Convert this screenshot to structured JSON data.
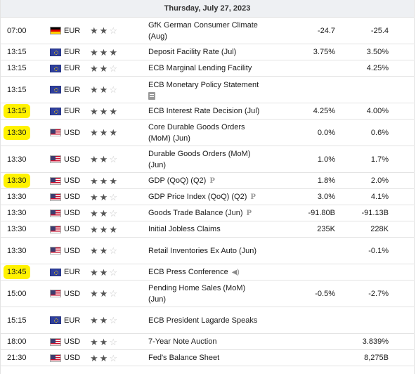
{
  "date_header": "Thursday, July 27, 2023",
  "rows": [
    {
      "time": "07:00",
      "hl": false,
      "flag": "de",
      "currency": "EUR",
      "stars": 2,
      "event": "GfK German Consumer Climate",
      "event2": "(Aug)",
      "icon": "",
      "actual": "-24.7",
      "forecast": "-25.4",
      "size": "tall"
    },
    {
      "time": "13:15",
      "hl": false,
      "flag": "eu",
      "currency": "EUR",
      "stars": 3,
      "event": "Deposit Facility Rate (Jul)",
      "event2": "",
      "icon": "",
      "actual": "3.75%",
      "forecast": "3.50%",
      "size": "short"
    },
    {
      "time": "13:15",
      "hl": false,
      "flag": "eu",
      "currency": "EUR",
      "stars": 2,
      "event": "ECB Marginal Lending Facility",
      "event2": "",
      "icon": "",
      "actual": "",
      "forecast": "4.25%",
      "size": "short"
    },
    {
      "time": "13:15",
      "hl": false,
      "flag": "eu",
      "currency": "EUR",
      "stars": 2,
      "event": "ECB Monetary Policy Statement",
      "event2": "",
      "icon": "doc",
      "actual": "",
      "forecast": "",
      "size": "tall"
    },
    {
      "time": "13:15",
      "hl": true,
      "flag": "eu",
      "currency": "EUR",
      "stars": 3,
      "event": "ECB Interest Rate Decision (Jul)",
      "event2": "",
      "icon": "",
      "actual": "4.25%",
      "forecast": "4.00%",
      "size": "short"
    },
    {
      "time": "13:30",
      "hl": true,
      "flag": "us",
      "currency": "USD",
      "stars": 3,
      "event": "Core Durable Goods Orders",
      "event2": "(MoM) (Jun)",
      "icon": "",
      "actual": "0.0%",
      "forecast": "0.6%",
      "size": "tall"
    },
    {
      "time": "13:30",
      "hl": false,
      "flag": "us",
      "currency": "USD",
      "stars": 2,
      "event": "Durable Goods Orders (MoM)",
      "event2": "(Jun)",
      "icon": "",
      "actual": "1.0%",
      "forecast": "1.7%",
      "size": "tall"
    },
    {
      "time": "13:30",
      "hl": true,
      "flag": "us",
      "currency": "USD",
      "stars": 3,
      "event": "GDP (QoQ) (Q2)",
      "event2": "",
      "icon": "p",
      "actual": "1.8%",
      "forecast": "2.0%",
      "size": "short"
    },
    {
      "time": "13:30",
      "hl": false,
      "flag": "us",
      "currency": "USD",
      "stars": 2,
      "event": "GDP Price Index (QoQ) (Q2)",
      "event2": "",
      "icon": "p",
      "actual": "3.0%",
      "forecast": "4.1%",
      "size": "short"
    },
    {
      "time": "13:30",
      "hl": false,
      "flag": "us",
      "currency": "USD",
      "stars": 2,
      "event": "Goods Trade Balance (Jun)",
      "event2": "",
      "icon": "p",
      "actual": "-91.80B",
      "forecast": "-91.13B",
      "size": "short"
    },
    {
      "time": "13:30",
      "hl": false,
      "flag": "us",
      "currency": "USD",
      "stars": 3,
      "event": "Initial Jobless Claims",
      "event2": "",
      "icon": "",
      "actual": "235K",
      "forecast": "228K",
      "size": "short"
    },
    {
      "time": "13:30",
      "hl": false,
      "flag": "us",
      "currency": "USD",
      "stars": 2,
      "event": "Retail Inventories Ex Auto (Jun)",
      "event2": "",
      "icon": "",
      "actual": "",
      "forecast": "-0.1%",
      "size": "tall"
    },
    {
      "time": "13:45",
      "hl": true,
      "flag": "eu",
      "currency": "EUR",
      "stars": 2,
      "event": "ECB Press Conference",
      "event2": "",
      "icon": "speaker",
      "actual": "",
      "forecast": "",
      "size": "short"
    },
    {
      "time": "15:00",
      "hl": false,
      "flag": "us",
      "currency": "USD",
      "stars": 2,
      "event": "Pending Home Sales (MoM)",
      "event2": "(Jun)",
      "icon": "",
      "actual": "-0.5%",
      "forecast": "-2.7%",
      "size": "tall"
    },
    {
      "time": "15:15",
      "hl": false,
      "flag": "eu",
      "currency": "EUR",
      "stars": 2,
      "event": "ECB President Lagarde Speaks",
      "event2": "",
      "icon": "",
      "actual": "",
      "forecast": "",
      "size": "tall"
    },
    {
      "time": "18:00",
      "hl": false,
      "flag": "us",
      "currency": "USD",
      "stars": 2,
      "event": "7-Year Note Auction",
      "event2": "",
      "icon": "",
      "actual": "",
      "forecast": "3.839%",
      "size": "short"
    },
    {
      "time": "21:30",
      "hl": false,
      "flag": "us",
      "currency": "USD",
      "stars": 2,
      "event": "Fed's Balance Sheet",
      "event2": "",
      "icon": "",
      "actual": "",
      "forecast": "8,275B",
      "size": "short"
    }
  ],
  "colors": {
    "highlight": "#fff200",
    "star_full": "#555555",
    "star_empty": "#c8c8c8"
  }
}
